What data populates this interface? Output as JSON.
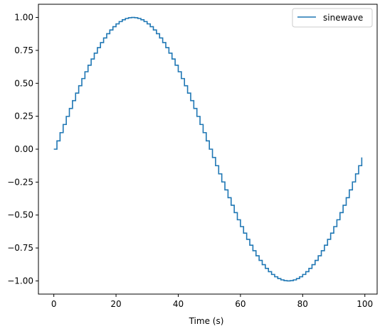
{
  "chart_data": {
    "type": "line",
    "drawstyle": "steps-post",
    "title": "",
    "xlabel": "Time (s)",
    "ylabel": "",
    "xlim": [
      -4.95,
      103.95
    ],
    "ylim": [
      -1.1,
      1.1
    ],
    "xticks": [
      0,
      20,
      40,
      60,
      80,
      100
    ],
    "xtick_labels": [
      "0",
      "20",
      "40",
      "60",
      "80",
      "100"
    ],
    "yticks": [
      -1.0,
      -0.75,
      -0.5,
      -0.25,
      0.0,
      0.25,
      0.5,
      0.75,
      1.0
    ],
    "ytick_labels": [
      "−1.00",
      "−0.75",
      "−0.50",
      "−0.25",
      "0.00",
      "0.25",
      "0.50",
      "0.75",
      "1.00"
    ],
    "grid": false,
    "legend": {
      "placement": "top-right"
    },
    "series": [
      {
        "name": "sinewave",
        "color": "#1f77b4",
        "x_start": 0,
        "x_end": 99,
        "x_step": 1,
        "function": "sin(2*pi*t/100)"
      }
    ]
  }
}
